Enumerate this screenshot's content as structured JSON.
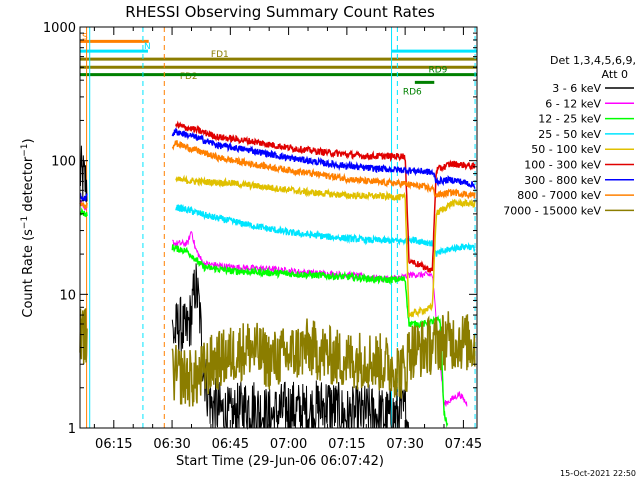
{
  "chart_data": {
    "type": "line",
    "title": "RHESSI Observing Summary Count Rates",
    "xlabel": "Start Time (29-Jun-06 06:07:42)",
    "ylabel_parts": [
      "Count Rate (s",
      "−1",
      " detector",
      "−1",
      ")"
    ],
    "yscale": "log",
    "ylim": [
      1,
      1000
    ],
    "y_ticks": [
      {
        "value": 1,
        "label": "1"
      },
      {
        "value": 10,
        "label": "10"
      },
      {
        "value": 100,
        "label": "100"
      },
      {
        "value": 1000,
        "label": "1000"
      }
    ],
    "xlim_minutes": [
      6.3,
      108.5
    ],
    "x_ticks": [
      {
        "minute": 15,
        "label": "06:15"
      },
      {
        "minute": 30,
        "label": "06:30"
      },
      {
        "minute": 45,
        "label": "06:45"
      },
      {
        "minute": 60,
        "label": "07:00"
      },
      {
        "minute": 75,
        "label": "07:15"
      },
      {
        "minute": 90,
        "label": "07:30"
      },
      {
        "minute": 105,
        "label": "07:45"
      }
    ],
    "legend_header": [
      "Det 1,3,4,5,6,9,",
      "Att 0"
    ],
    "legend_location": "right",
    "flags": [
      {
        "label": "S",
        "start": 6.3,
        "end": 24.0,
        "level": 780,
        "color": "#ff8000"
      },
      {
        "label": "N",
        "start": 6.3,
        "end": 23.8,
        "level": 660,
        "color": "#00e5ff"
      },
      {
        "label": "",
        "start": 86.5,
        "end": 108.5,
        "level": 660,
        "color": "#00e5ff"
      },
      {
        "label": "FD1",
        "start": 6.3,
        "end": 108.5,
        "level": 575,
        "color": "#8b7d00"
      },
      {
        "label": "FD2",
        "start": 6.3,
        "end": 108.5,
        "level": 500,
        "color": "#8b7d00"
      },
      {
        "label": "RD9",
        "start": 6.3,
        "end": 108.5,
        "level": 440,
        "color": "#008000"
      },
      {
        "label": "RD6",
        "start": 92.5,
        "end": 97.5,
        "level": 385,
        "color": "#008000"
      }
    ],
    "vertical_markers": [
      {
        "minute": 8.0,
        "color": "#ff8000",
        "style": "solid"
      },
      {
        "minute": 8.8,
        "color": "#00e5ff",
        "style": "solid"
      },
      {
        "minute": 22.5,
        "color": "#00e5ff",
        "style": "dash"
      },
      {
        "minute": 28.0,
        "color": "#ff8000",
        "style": "dash"
      },
      {
        "minute": 86.5,
        "color": "#00e5ff",
        "style": "solid"
      },
      {
        "minute": 88.0,
        "color": "#00e5ff",
        "style": "dash"
      },
      {
        "minute": 108.0,
        "color": "#00e5ff",
        "style": "dash"
      }
    ],
    "series": [
      {
        "name": "3 - 6 keV",
        "color": "#000000",
        "width": 1,
        "points": [
          [
            6.3,
            80
          ],
          [
            7.0,
            75
          ],
          [
            7.5,
            70
          ],
          [
            30.5,
            5
          ],
          [
            32,
            6
          ],
          [
            33.5,
            5
          ],
          [
            35,
            7
          ],
          [
            36,
            12
          ],
          [
            37,
            8
          ],
          [
            38,
            3
          ],
          [
            39,
            2
          ],
          [
            40,
            1.5
          ],
          [
            45,
            1.2
          ],
          [
            50,
            1.5
          ],
          [
            55,
            1.2
          ],
          [
            60,
            1.4
          ],
          [
            65,
            1.3
          ],
          [
            70,
            1.5
          ],
          [
            75,
            1.2
          ],
          [
            80,
            1.3
          ],
          [
            85,
            1.2
          ],
          [
            90,
            1.3
          ],
          [
            91,
            1.0
          ]
        ]
      },
      {
        "name": "6 - 12 keV",
        "color": "#ff00ff",
        "width": 1,
        "points": [
          [
            6.3,
            50
          ],
          [
            7.5,
            45
          ],
          [
            31,
            24
          ],
          [
            34,
            24
          ],
          [
            35,
            30
          ],
          [
            36,
            22
          ],
          [
            38,
            17
          ],
          [
            45,
            16
          ],
          [
            55,
            15.5
          ],
          [
            65,
            14.5
          ],
          [
            75,
            14
          ],
          [
            85,
            13
          ],
          [
            90,
            13.5
          ],
          [
            91,
            14
          ],
          [
            97,
            14
          ],
          [
            100,
            1.5
          ],
          [
            104,
            1.8
          ],
          [
            106,
            1.5
          ]
        ]
      },
      {
        "name": "12 - 25 keV",
        "color": "#00ff00",
        "width": 1.5,
        "points": [
          [
            6.3,
            42
          ],
          [
            7.5,
            40
          ],
          [
            31,
            22
          ],
          [
            34,
            21
          ],
          [
            38,
            16
          ],
          [
            45,
            15
          ],
          [
            55,
            14.5
          ],
          [
            65,
            14
          ],
          [
            75,
            13.5
          ],
          [
            85,
            12.8
          ],
          [
            90,
            13
          ],
          [
            91,
            6
          ],
          [
            95,
            6
          ],
          [
            99,
            6.5
          ],
          [
            100,
            1.3
          ],
          [
            101,
            1.0
          ]
        ]
      },
      {
        "name": "25 - 50 keV",
        "color": "#00e5ff",
        "width": 1.5,
        "points": [
          [
            31,
            45
          ],
          [
            35,
            42
          ],
          [
            40,
            38
          ],
          [
            50,
            33
          ],
          [
            60,
            29
          ],
          [
            70,
            27
          ],
          [
            80,
            25.5
          ],
          [
            90,
            25
          ],
          [
            91,
            26
          ],
          [
            97,
            24
          ],
          [
            98,
            20
          ],
          [
            102,
            22
          ],
          [
            106,
            23
          ],
          [
            108,
            22
          ]
        ]
      },
      {
        "name": "50 - 100 keV",
        "color": "#e0c000",
        "width": 1.5,
        "points": [
          [
            31,
            72
          ],
          [
            36,
            70
          ],
          [
            45,
            68
          ],
          [
            55,
            63
          ],
          [
            65,
            58
          ],
          [
            75,
            55
          ],
          [
            85,
            54
          ],
          [
            90,
            53
          ],
          [
            91,
            7
          ],
          [
            97,
            8
          ],
          [
            98,
            40
          ],
          [
            102,
            48
          ],
          [
            106,
            48
          ],
          [
            108,
            47
          ]
        ]
      },
      {
        "name": "100 - 300 keV",
        "color": "#e00000",
        "width": 1.5,
        "points": [
          [
            31,
            185
          ],
          [
            36,
            170
          ],
          [
            42,
            150
          ],
          [
            50,
            140
          ],
          [
            60,
            125
          ],
          [
            70,
            115
          ],
          [
            80,
            108
          ],
          [
            90,
            108
          ],
          [
            91,
            18
          ],
          [
            97,
            15
          ],
          [
            98,
            85
          ],
          [
            102,
            95
          ],
          [
            106,
            92
          ],
          [
            108,
            90
          ]
        ]
      },
      {
        "name": "300 - 800 keV",
        "color": "#0000ff",
        "width": 1.5,
        "points": [
          [
            6.3,
            55
          ],
          [
            7.5,
            52
          ],
          [
            31,
            165
          ],
          [
            36,
            150
          ],
          [
            42,
            130
          ],
          [
            50,
            120
          ],
          [
            60,
            105
          ],
          [
            70,
            95
          ],
          [
            80,
            88
          ],
          [
            90,
            85
          ],
          [
            97,
            82
          ],
          [
            98,
            70
          ],
          [
            102,
            72
          ],
          [
            106,
            68
          ],
          [
            108,
            65
          ]
        ]
      },
      {
        "name": "800 - 7000 keV",
        "color": "#ff8000",
        "width": 1.5,
        "points": [
          [
            6.3,
            48
          ],
          [
            7.5,
            45
          ],
          [
            31,
            135
          ],
          [
            36,
            120
          ],
          [
            42,
            105
          ],
          [
            50,
            95
          ],
          [
            60,
            85
          ],
          [
            70,
            77
          ],
          [
            80,
            70
          ],
          [
            90,
            67
          ],
          [
            97,
            62
          ],
          [
            98,
            55
          ],
          [
            102,
            58
          ],
          [
            106,
            56
          ],
          [
            108,
            55
          ]
        ]
      },
      {
        "name": "7000 - 15000 keV",
        "color": "#8b7d00",
        "width": 1.5,
        "points": [
          [
            6.3,
            5
          ],
          [
            7.5,
            5
          ],
          [
            31,
            2.5
          ],
          [
            36,
            2.3
          ],
          [
            40,
            3
          ],
          [
            45,
            3.5
          ],
          [
            50,
            4
          ],
          [
            55,
            3.2
          ],
          [
            60,
            3.5
          ],
          [
            65,
            4
          ],
          [
            70,
            3.5
          ],
          [
            75,
            3.2
          ],
          [
            80,
            3.3
          ],
          [
            85,
            3
          ],
          [
            90,
            2.6
          ],
          [
            91,
            3.8
          ],
          [
            95,
            4
          ],
          [
            100,
            4.5
          ],
          [
            104,
            4.5
          ],
          [
            108,
            4.2
          ]
        ]
      }
    ],
    "footer_date": "15-Oct-2021 22:50"
  }
}
